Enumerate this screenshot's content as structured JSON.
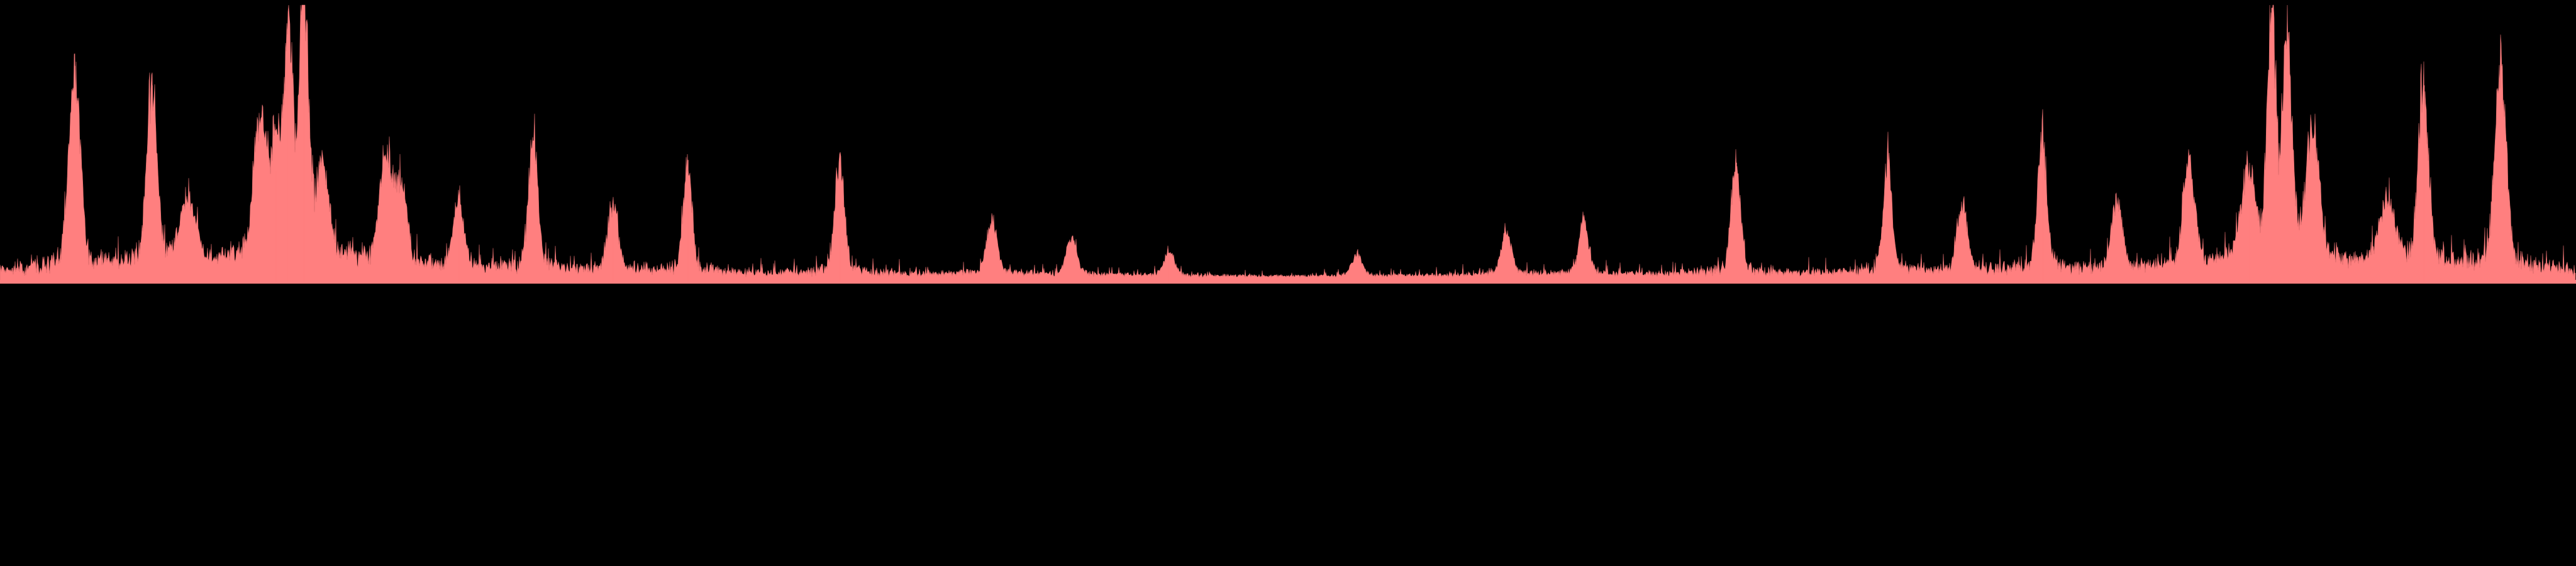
{
  "colors": {
    "background": "#000000",
    "spectrum_fill": "#ff7f7f",
    "spectrum_edge": "#d96a6a"
  },
  "chart_data": {
    "type": "area",
    "symmetric": true,
    "x_range": [
      0,
      1
    ],
    "y_range": [
      0,
      1
    ],
    "baseline": 0.015,
    "noise_floor": 0.035,
    "noise_amplitude": 0.045,
    "center_dip": 0.5,
    "series": [
      {
        "values_note": "",
        "peaks": [
          {
            "x": 0.029,
            "height": 0.78,
            "width": 0.0022
          },
          {
            "x": 0.059,
            "height": 0.71,
            "width": 0.002
          },
          {
            "x": 0.073,
            "height": 0.25,
            "width": 0.003
          },
          {
            "x": 0.101,
            "height": 0.5,
            "width": 0.0025
          },
          {
            "x": 0.107,
            "height": 0.4,
            "width": 0.0018
          },
          {
            "x": 0.112,
            "height": 0.87,
            "width": 0.0018
          },
          {
            "x": 0.118,
            "height": 0.99,
            "width": 0.0016
          },
          {
            "x": 0.125,
            "height": 0.33,
            "width": 0.0025
          },
          {
            "x": 0.15,
            "height": 0.42,
            "width": 0.0025
          },
          {
            "x": 0.156,
            "height": 0.3,
            "width": 0.002
          },
          {
            "x": 0.178,
            "height": 0.27,
            "width": 0.002
          },
          {
            "x": 0.207,
            "height": 0.51,
            "width": 0.0018
          },
          {
            "x": 0.238,
            "height": 0.25,
            "width": 0.002
          },
          {
            "x": 0.267,
            "height": 0.44,
            "width": 0.0016
          },
          {
            "x": 0.326,
            "height": 0.43,
            "width": 0.0018
          },
          {
            "x": 0.385,
            "height": 0.21,
            "width": 0.002
          },
          {
            "x": 0.416,
            "height": 0.14,
            "width": 0.002
          },
          {
            "x": 0.454,
            "height": 0.09,
            "width": 0.002
          },
          {
            "x": 0.527,
            "height": 0.08,
            "width": 0.002
          },
          {
            "x": 0.585,
            "height": 0.17,
            "width": 0.002
          },
          {
            "x": 0.615,
            "height": 0.21,
            "width": 0.0018
          },
          {
            "x": 0.674,
            "height": 0.43,
            "width": 0.0018
          },
          {
            "x": 0.733,
            "height": 0.44,
            "width": 0.0016
          },
          {
            "x": 0.762,
            "height": 0.25,
            "width": 0.002
          },
          {
            "x": 0.793,
            "height": 0.51,
            "width": 0.0018
          },
          {
            "x": 0.822,
            "height": 0.27,
            "width": 0.002
          },
          {
            "x": 0.85,
            "height": 0.4,
            "width": 0.0022
          },
          {
            "x": 0.873,
            "height": 0.33,
            "width": 0.0025
          },
          {
            "x": 0.882,
            "height": 0.99,
            "width": 0.0016
          },
          {
            "x": 0.888,
            "height": 0.87,
            "width": 0.0018
          },
          {
            "x": 0.898,
            "height": 0.5,
            "width": 0.0025
          },
          {
            "x": 0.927,
            "height": 0.25,
            "width": 0.003
          },
          {
            "x": 0.941,
            "height": 0.71,
            "width": 0.002
          },
          {
            "x": 0.971,
            "height": 0.78,
            "width": 0.0022
          }
        ]
      }
    ],
    "plot_area_fraction": {
      "baseline_y": 0.19,
      "max_height": 0.19
    },
    "grid": false,
    "legend": "none",
    "title": "",
    "xlabel": "",
    "ylabel": ""
  }
}
